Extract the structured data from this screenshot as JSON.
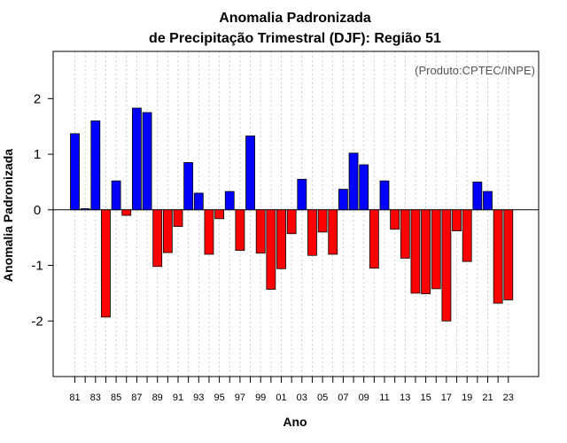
{
  "chart_data": {
    "type": "bar",
    "title_line1": "Anomalia Padronizada",
    "title_line2": "de Precipitação Trimestral (DJF): Região 51",
    "annotation": "(Produto:CPTEC/INPE)",
    "xlabel": "Ano",
    "ylabel": "Anomalia Padronizada",
    "ylim": [
      -3,
      2.85
    ],
    "yticks": [
      -2,
      -1,
      0,
      1,
      2
    ],
    "ytick_labels": [
      "-2",
      "-1",
      "0",
      "1",
      "2"
    ],
    "xtick_labels": [
      "81",
      "83",
      "85",
      "87",
      "89",
      "91",
      "93",
      "95",
      "97",
      "99",
      "01",
      "03",
      "05",
      "07",
      "09",
      "11",
      "13",
      "15",
      "17",
      "19",
      "21",
      "23"
    ],
    "categories": [
      "1981",
      "1982",
      "1983",
      "1984",
      "1985",
      "1986",
      "1987",
      "1988",
      "1989",
      "1990",
      "1991",
      "1992",
      "1993",
      "1994",
      "1995",
      "1996",
      "1997",
      "1998",
      "1999",
      "2000",
      "2001",
      "2002",
      "2003",
      "2004",
      "2005",
      "2006",
      "2007",
      "2008",
      "2009",
      "2010",
      "2011",
      "2012",
      "2013",
      "2014",
      "2015",
      "2016",
      "2017",
      "2018",
      "2019",
      "2020",
      "2021",
      "2022",
      "2023"
    ],
    "values": [
      1.37,
      0.02,
      1.6,
      -1.93,
      0.52,
      -0.1,
      1.83,
      1.75,
      -1.02,
      -0.77,
      -0.3,
      0.85,
      0.3,
      -0.8,
      -0.16,
      0.33,
      -0.73,
      1.33,
      -0.78,
      -1.43,
      -1.06,
      -0.43,
      0.55,
      -0.82,
      -0.4,
      -0.8,
      0.37,
      1.02,
      0.81,
      -1.05,
      0.52,
      -0.35,
      -0.87,
      -1.5,
      -1.51,
      -1.42,
      -2.0,
      -0.38,
      -0.93,
      0.5,
      0.33,
      -1.68,
      -1.62
    ],
    "grid": "vertical dotted",
    "colors": {
      "positive": "#0000ff",
      "negative": "#ff0000",
      "zero_line": "#000000",
      "grid": "#cccccc"
    }
  }
}
